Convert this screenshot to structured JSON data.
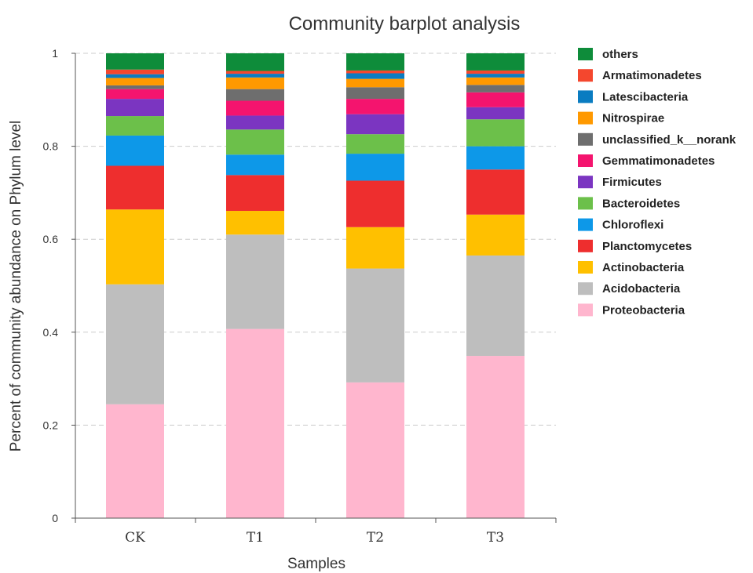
{
  "chart_data": {
    "type": "bar",
    "stacked": true,
    "title": "Community barplot analysis",
    "xlabel": "Samples",
    "ylabel": "Percent of community abundance on Phylum level",
    "ylim": [
      0,
      1
    ],
    "yticks": [
      "0",
      "0.2",
      "0.4",
      "0.6",
      "0.8",
      "1"
    ],
    "grid": "horizontal-dashed",
    "legend_position": "right",
    "categories": [
      "CK",
      "T1",
      "T2",
      "T3"
    ],
    "series": [
      {
        "name": "Proteobacteria",
        "color": "#FFB6CE",
        "values": [
          0.245,
          0.407,
          0.292,
          0.349
        ]
      },
      {
        "name": "Acidobacteria",
        "color": "#BEBEBE",
        "values": [
          0.258,
          0.203,
          0.245,
          0.216
        ]
      },
      {
        "name": "Actinobacteria",
        "color": "#FFC000",
        "values": [
          0.161,
          0.051,
          0.089,
          0.088
        ]
      },
      {
        "name": "Planctomycetes",
        "color": "#EE2E2E",
        "values": [
          0.094,
          0.077,
          0.1,
          0.097
        ]
      },
      {
        "name": "Chloroflexi",
        "color": "#0D98E8",
        "values": [
          0.065,
          0.044,
          0.058,
          0.05
        ]
      },
      {
        "name": "Bacteroidetes",
        "color": "#6CC04A",
        "values": [
          0.042,
          0.054,
          0.042,
          0.058
        ]
      },
      {
        "name": "Firmicutes",
        "color": "#7B35C1",
        "values": [
          0.037,
          0.03,
          0.043,
          0.026
        ]
      },
      {
        "name": "Gemmatimonadetes",
        "color": "#F4146E",
        "values": [
          0.021,
          0.032,
          0.033,
          0.032
        ]
      },
      {
        "name": "unclassified_k__norank",
        "color": "#6E6E6E",
        "values": [
          0.008,
          0.025,
          0.025,
          0.016
        ]
      },
      {
        "name": "Nitrospirae",
        "color": "#FF9900",
        "values": [
          0.016,
          0.025,
          0.018,
          0.016
        ]
      },
      {
        "name": "Latescibacteria",
        "color": "#0A7CC1",
        "values": [
          0.008,
          0.008,
          0.012,
          0.008
        ]
      },
      {
        "name": "Armatimonadetes",
        "color": "#F4472E",
        "values": [
          0.01,
          0.006,
          0.006,
          0.007
        ]
      },
      {
        "name": "others",
        "color": "#0E8C3A",
        "values": [
          0.035,
          0.038,
          0.037,
          0.037
        ]
      }
    ]
  }
}
